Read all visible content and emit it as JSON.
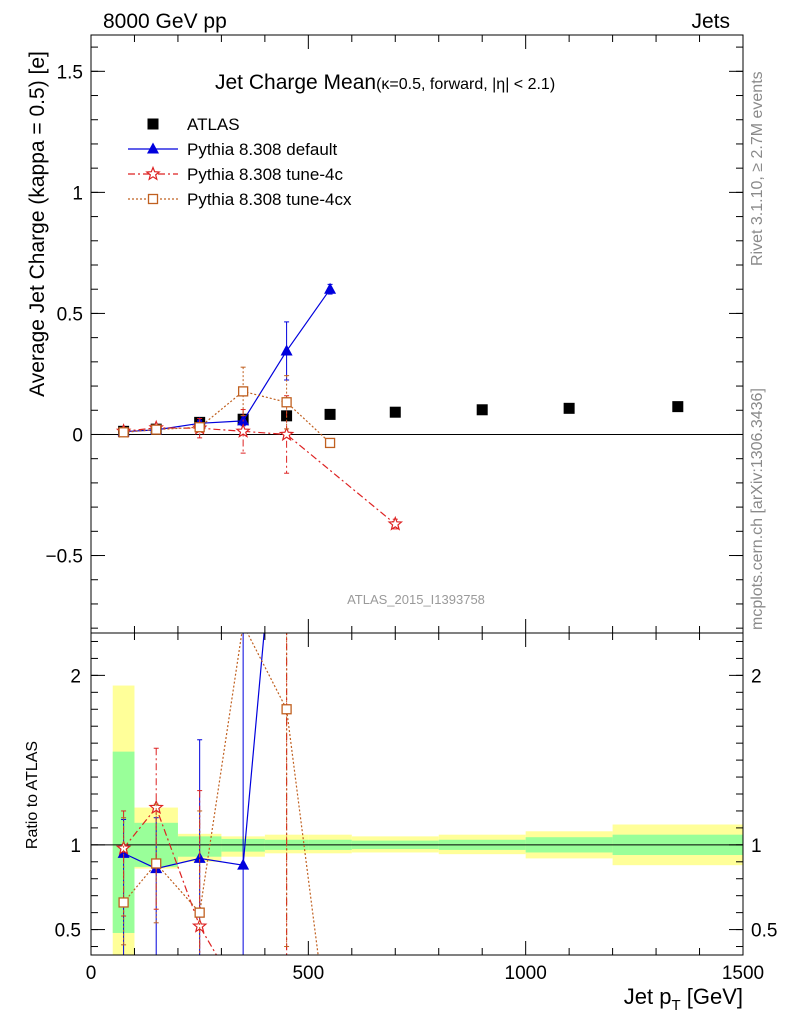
{
  "header": {
    "left": "8000 GeV pp",
    "right": "Jets"
  },
  "side_labels": {
    "rivet": "Rivet 3.1.10, ≥ 2.7M events",
    "mcplots": "mcplots.cern.ch [arXiv:1306.3436]"
  },
  "chart_data": [
    {
      "panel": "main",
      "type": "line",
      "title": "Jet Charge Mean",
      "subtitle": "(κ=0.5, forward, |η| < 2.1)",
      "xlabel": "",
      "ylabel": "Average Jet Charge (kappa = 0.5) [e]",
      "watermark": "ATLAS_2015_I1393758",
      "xlim": [
        0,
        1500
      ],
      "ylim": [
        -0.82,
        1.65
      ],
      "xticks": [
        0,
        500,
        1000,
        1500
      ],
      "xtick_labels": [
        "0",
        "500",
        "1000",
        "1500"
      ],
      "yticks": [
        -0.5,
        0,
        0.5,
        1,
        1.5
      ],
      "ytick_labels": [
        "−0.5",
        "0",
        "0.5",
        "1",
        "1.5"
      ],
      "legend_position": "top-left",
      "series": [
        {
          "name": "ATLAS",
          "color": "#000000",
          "marker": "square",
          "line": "none",
          "x": [
            75,
            150,
            250,
            350,
            450,
            550,
            700,
            900,
            1100,
            1350
          ],
          "y": [
            0.013,
            0.022,
            0.05,
            0.063,
            0.077,
            0.083,
            0.092,
            0.102,
            0.108,
            0.115
          ],
          "err": [
            0.004,
            0.004,
            0.004,
            0.004,
            0.004,
            0.004,
            0.004,
            0.005,
            0.006,
            0.007
          ]
        },
        {
          "name": "Pythia 8.308 default",
          "color": "#0000dd",
          "marker": "triangle",
          "line": "solid",
          "x": [
            75,
            150,
            250,
            350,
            450,
            550
          ],
          "y": [
            0.012,
            0.019,
            0.046,
            0.056,
            0.345,
            0.6
          ],
          "err": [
            0.005,
            0.008,
            0.012,
            0.02,
            0.12,
            0.02
          ]
        },
        {
          "name": "Pythia 8.308 tune-4c",
          "color": "#dd2222",
          "marker": "star",
          "line": "dashdot",
          "x": [
            75,
            150,
            250,
            350,
            450,
            700
          ],
          "y": [
            0.013,
            0.027,
            0.026,
            0.013,
            0.0,
            -0.37
          ],
          "err": [
            0.005,
            0.01,
            0.04,
            0.09,
            0.16,
            0.02
          ]
        },
        {
          "name": "Pythia 8.308 tune-4cx",
          "color": "#c06020",
          "marker": "open-square",
          "line": "dotted",
          "x": [
            75,
            150,
            250,
            350,
            450,
            550
          ],
          "y": [
            0.009,
            0.02,
            0.03,
            0.178,
            0.133,
            -0.035
          ],
          "err": [
            0.005,
            0.008,
            0.015,
            0.1,
            0.11,
            0.01
          ]
        }
      ]
    },
    {
      "panel": "ratio",
      "type": "line",
      "xlabel": "Jet p",
      "xlabel_sub": "T",
      "xlabel_unit": " [GeV]",
      "ylabel": "Ratio to ATLAS",
      "xlim": [
        0,
        1500
      ],
      "ylim": [
        0.35,
        2.25
      ],
      "xticks": [
        0,
        500,
        1000,
        1500
      ],
      "xtick_labels": [
        "0",
        "500",
        "1000",
        "1500"
      ],
      "yticks": [
        0.5,
        1,
        2
      ],
      "ytick_labels": [
        "0.5",
        "1",
        "2"
      ],
      "bands": {
        "x_edges": [
          50,
          100,
          200,
          300,
          400,
          500,
          600,
          800,
          1000,
          1200,
          1500
        ],
        "inner_lo": [
          0.48,
          0.87,
          0.93,
          0.96,
          0.97,
          0.97,
          0.975,
          0.97,
          0.955,
          0.94
        ],
        "inner_hi": [
          1.55,
          1.13,
          1.05,
          1.035,
          1.03,
          1.03,
          1.025,
          1.03,
          1.045,
          1.06
        ],
        "outer_lo": [
          0.35,
          0.86,
          0.9,
          0.93,
          0.95,
          0.95,
          0.955,
          0.945,
          0.92,
          0.88
        ],
        "outer_hi": [
          1.94,
          1.22,
          1.065,
          1.05,
          1.06,
          1.06,
          1.05,
          1.06,
          1.08,
          1.12
        ],
        "inner_color": "#99ff99",
        "outer_color": "#ffff99"
      },
      "series": [
        {
          "name": "Pythia 8.308 default",
          "color": "#0000dd",
          "marker": "triangle",
          "line": "solid",
          "x": [
            75,
            150,
            250,
            350,
            400
          ],
          "y": [
            0.95,
            0.86,
            0.92,
            0.88,
            2.3
          ],
          "err_lo": [
            0.95,
            0.86,
            0.92,
            0.88,
            0
          ],
          "err_hi": [
            0.2,
            0.3,
            0.7,
            1.8,
            0
          ],
          "marker_mask": [
            true,
            true,
            true,
            true,
            false
          ]
        },
        {
          "name": "Pythia 8.308 tune-4c",
          "color": "#dd2222",
          "marker": "star",
          "line": "dashdot",
          "x": [
            75,
            150,
            250,
            300,
            450,
            450
          ],
          "y": [
            0.98,
            1.22,
            0.52,
            0.3,
            0.3,
            2.25
          ],
          "err_lo": [
            0.4,
            0.6,
            0.7,
            0,
            0,
            0
          ],
          "err_hi": [
            0.22,
            0.35,
            0.8,
            0,
            0,
            0
          ],
          "marker_mask": [
            true,
            true,
            true,
            false,
            false,
            false
          ]
        },
        {
          "name": "Pythia 8.308 tune-4cx",
          "color": "#c06020",
          "marker": "open-square",
          "line": "dotted",
          "x": [
            75,
            150,
            250,
            350,
            450,
            525
          ],
          "y": [
            0.66,
            0.89,
            0.6,
            2.3,
            1.8,
            0.3
          ],
          "err_lo": [
            0.25,
            0.35,
            0.6,
            0,
            1.4,
            0
          ],
          "err_hi": [
            0.5,
            0.35,
            0.6,
            0,
            0.5,
            0
          ],
          "marker_mask": [
            true,
            true,
            true,
            false,
            true,
            false
          ]
        }
      ]
    }
  ]
}
